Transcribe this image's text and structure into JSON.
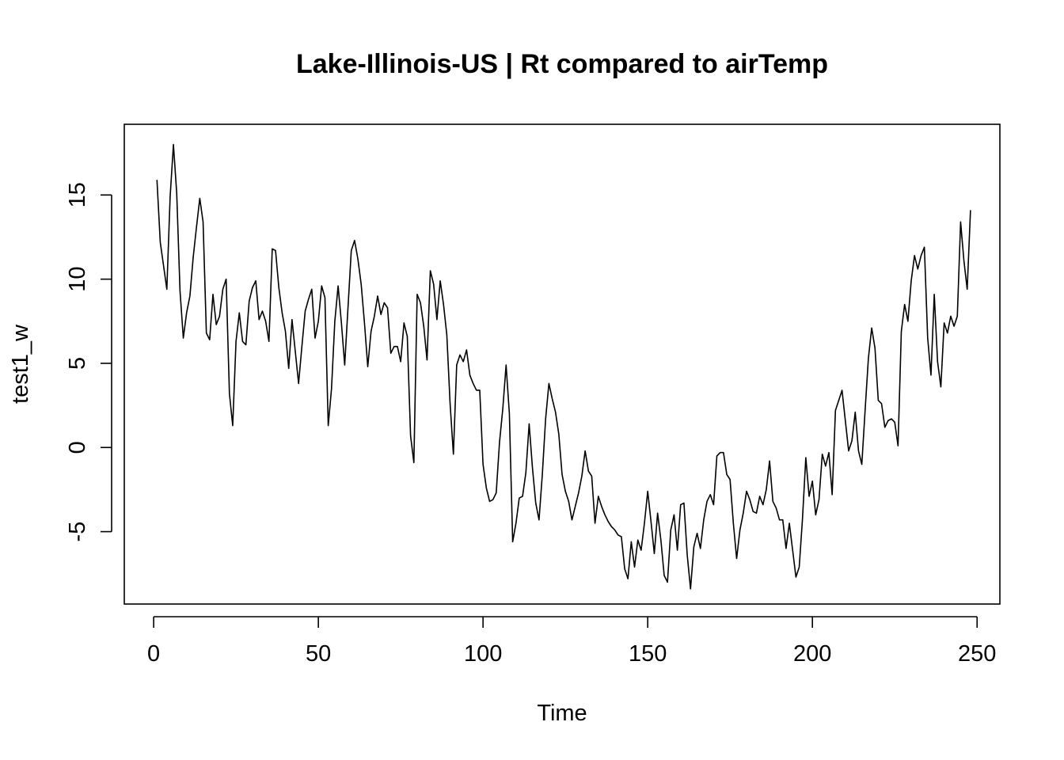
{
  "chart_data": {
    "type": "line",
    "title": "Lake-Illinois-US | Rt compared to airTemp",
    "xlabel": "Time",
    "ylabel": "test1_w",
    "xlim": [
      -8.92,
      256.92
    ],
    "ylim": [
      -9.3,
      19.2
    ],
    "x_ticks": [
      0,
      50,
      100,
      150,
      200,
      250
    ],
    "y_ticks": [
      -5,
      0,
      5,
      10,
      15
    ],
    "grid": false,
    "line_color": "#000000",
    "x": [
      1,
      2,
      3,
      4,
      5,
      6,
      7,
      8,
      9,
      10,
      11,
      12,
      13,
      14,
      15,
      16,
      17,
      18,
      19,
      20,
      21,
      22,
      23,
      24,
      25,
      26,
      27,
      28,
      29,
      30,
      31,
      32,
      33,
      34,
      35,
      36,
      37,
      38,
      39,
      40,
      41,
      42,
      43,
      44,
      45,
      46,
      47,
      48,
      49,
      50,
      51,
      52,
      53,
      54,
      55,
      56,
      57,
      58,
      59,
      60,
      61,
      62,
      63,
      64,
      65,
      66,
      67,
      68,
      69,
      70,
      71,
      72,
      73,
      74,
      75,
      76,
      77,
      78,
      79,
      80,
      81,
      82,
      83,
      84,
      85,
      86,
      87,
      88,
      89,
      90,
      91,
      92,
      93,
      94,
      95,
      96,
      97,
      98,
      99,
      100,
      101,
      102,
      103,
      104,
      105,
      106,
      107,
      108,
      109,
      110,
      111,
      112,
      113,
      114,
      115,
      116,
      117,
      118,
      119,
      120,
      121,
      122,
      123,
      124,
      125,
      126,
      127,
      128,
      129,
      130,
      131,
      132,
      133,
      134,
      135,
      136,
      137,
      138,
      139,
      140,
      141,
      142,
      143,
      144,
      145,
      146,
      147,
      148,
      149,
      150,
      151,
      152,
      153,
      154,
      155,
      156,
      157,
      158,
      159,
      160,
      161,
      162,
      163,
      164,
      165,
      166,
      167,
      168,
      169,
      170,
      171,
      172,
      173,
      174,
      175,
      176,
      177,
      178,
      179,
      180,
      181,
      182,
      183,
      184,
      185,
      186,
      187,
      188,
      189,
      190,
      191,
      192,
      193,
      194,
      195,
      196,
      197,
      198,
      199,
      200,
      201,
      202,
      203,
      204,
      205,
      206,
      207,
      208,
      209,
      210,
      211,
      212,
      213,
      214,
      215,
      216,
      217,
      218,
      219,
      220,
      221,
      222,
      223,
      224,
      225,
      226,
      227,
      228,
      229,
      230,
      231,
      232,
      233,
      234,
      235,
      236,
      237,
      238,
      239,
      240,
      241,
      242,
      243,
      244,
      245,
      246,
      247,
      248
    ],
    "values": [
      15.9,
      12.2,
      10.8,
      9.4,
      14.9,
      18.0,
      15.1,
      9.3,
      6.5,
      8.0,
      9.0,
      11.3,
      13.1,
      14.8,
      13.4,
      6.8,
      6.4,
      9.1,
      7.3,
      7.8,
      9.4,
      10.0,
      3.2,
      1.3,
      6.3,
      8.0,
      6.3,
      6.1,
      8.7,
      9.5,
      9.9,
      7.6,
      8.1,
      7.5,
      6.3,
      11.8,
      11.7,
      9.5,
      8.0,
      6.9,
      4.7,
      7.6,
      5.7,
      3.8,
      6.0,
      8.1,
      8.8,
      9.4,
      6.5,
      7.5,
      9.6,
      8.9,
      1.3,
      3.5,
      7.5,
      9.6,
      7.4,
      4.9,
      8.3,
      11.7,
      12.3,
      11.2,
      9.7,
      7.4,
      4.8,
      6.9,
      7.8,
      9.0,
      7.9,
      8.6,
      8.3,
      5.6,
      6.0,
      6.0,
      5.1,
      7.4,
      6.6,
      0.7,
      -0.9,
      9.1,
      8.6,
      7.2,
      5.2,
      10.5,
      9.7,
      7.6,
      9.9,
      8.5,
      6.7,
      2.6,
      -0.4,
      4.9,
      5.5,
      5.1,
      5.8,
      4.3,
      3.8,
      3.4,
      3.4,
      -1.0,
      -2.4,
      -3.2,
      -3.1,
      -2.7,
      0.3,
      2.3,
      4.9,
      2.0,
      -5.6,
      -4.5,
      -3.0,
      -2.9,
      -1.5,
      1.4,
      -1.2,
      -3.3,
      -4.3,
      -1.6,
      1.7,
      3.8,
      2.9,
      2.1,
      0.8,
      -1.6,
      -2.6,
      -3.2,
      -4.3,
      -3.5,
      -2.7,
      -1.7,
      -0.2,
      -1.4,
      -1.7,
      -4.5,
      -2.9,
      -3.5,
      -4.0,
      -4.4,
      -4.7,
      -4.9,
      -5.2,
      -5.3,
      -7.2,
      -7.8,
      -5.6,
      -7.1,
      -5.5,
      -6.1,
      -4.5,
      -2.6,
      -4.4,
      -6.3,
      -3.9,
      -5.5,
      -7.6,
      -8.0,
      -4.9,
      -4.0,
      -6.1,
      -3.4,
      -3.3,
      -6.4,
      -8.4,
      -5.9,
      -5.1,
      -6.0,
      -4.3,
      -3.2,
      -2.8,
      -3.4,
      -0.5,
      -0.3,
      -0.3,
      -1.6,
      -1.9,
      -4.5,
      -6.6,
      -4.9,
      -3.9,
      -2.6,
      -3.1,
      -3.8,
      -3.9,
      -2.9,
      -3.4,
      -2.5,
      -0.8,
      -3.2,
      -3.6,
      -4.3,
      -4.3,
      -6.0,
      -4.5,
      -6.1,
      -7.7,
      -7.1,
      -4.2,
      -0.6,
      -2.9,
      -2.0,
      -4.0,
      -3.1,
      -0.4,
      -1.1,
      -0.3,
      -2.8,
      2.2,
      2.8,
      3.4,
      1.6,
      -0.2,
      0.4,
      2.1,
      -0.2,
      -1.0,
      2.2,
      5.3,
      7.1,
      5.9,
      2.8,
      2.6,
      1.2,
      1.6,
      1.7,
      1.5,
      0.1,
      6.9,
      8.5,
      7.5,
      9.9,
      11.4,
      10.6,
      11.4,
      11.9,
      6.5,
      4.3,
      9.1,
      5.1,
      3.6,
      7.4,
      6.8,
      7.8,
      7.2,
      7.8,
      13.4,
      11.1,
      9.4,
      14.1
    ]
  }
}
